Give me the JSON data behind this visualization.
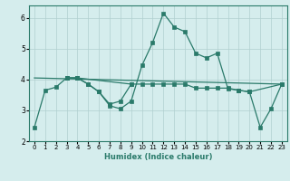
{
  "xlabel": "Humidex (Indice chaleur)",
  "background_color": "#d5eded",
  "grid_color": "#b0d0d0",
  "line_color": "#2a7a6a",
  "xlim": [
    -0.5,
    23.5
  ],
  "ylim": [
    2.0,
    6.4
  ],
  "xticks": [
    0,
    1,
    2,
    3,
    4,
    5,
    6,
    7,
    8,
    9,
    10,
    11,
    12,
    13,
    14,
    15,
    16,
    17,
    18,
    19,
    20,
    21,
    22,
    23
  ],
  "yticks": [
    2,
    3,
    4,
    5,
    6
  ],
  "line1_x": [
    0,
    1,
    2,
    3,
    4,
    5,
    6,
    7,
    8,
    9,
    10,
    11,
    12,
    13,
    14,
    15,
    16,
    17,
    18,
    19,
    20,
    21,
    22,
    23
  ],
  "line1_y": [
    2.45,
    3.65,
    3.75,
    4.05,
    4.05,
    3.85,
    3.6,
    3.15,
    3.05,
    3.3,
    4.45,
    5.2,
    6.15,
    5.7,
    5.55,
    4.85,
    4.7,
    4.85,
    3.7,
    3.65,
    3.6,
    2.45,
    3.05,
    3.85
  ],
  "line2_x": [
    0,
    23
  ],
  "line2_y": [
    4.05,
    3.85
  ],
  "line3_x": [
    3,
    4,
    9,
    10,
    11,
    12,
    13,
    14,
    15,
    16,
    17,
    18,
    19,
    20,
    23
  ],
  "line3_y": [
    4.05,
    4.05,
    3.85,
    3.85,
    3.85,
    3.85,
    3.85,
    3.85,
    3.72,
    3.72,
    3.72,
    3.72,
    3.65,
    3.6,
    3.85
  ],
  "line4_x": [
    3,
    4,
    5,
    6,
    7,
    8,
    9
  ],
  "line4_y": [
    4.05,
    4.05,
    3.85,
    3.6,
    3.2,
    3.3,
    3.85
  ]
}
